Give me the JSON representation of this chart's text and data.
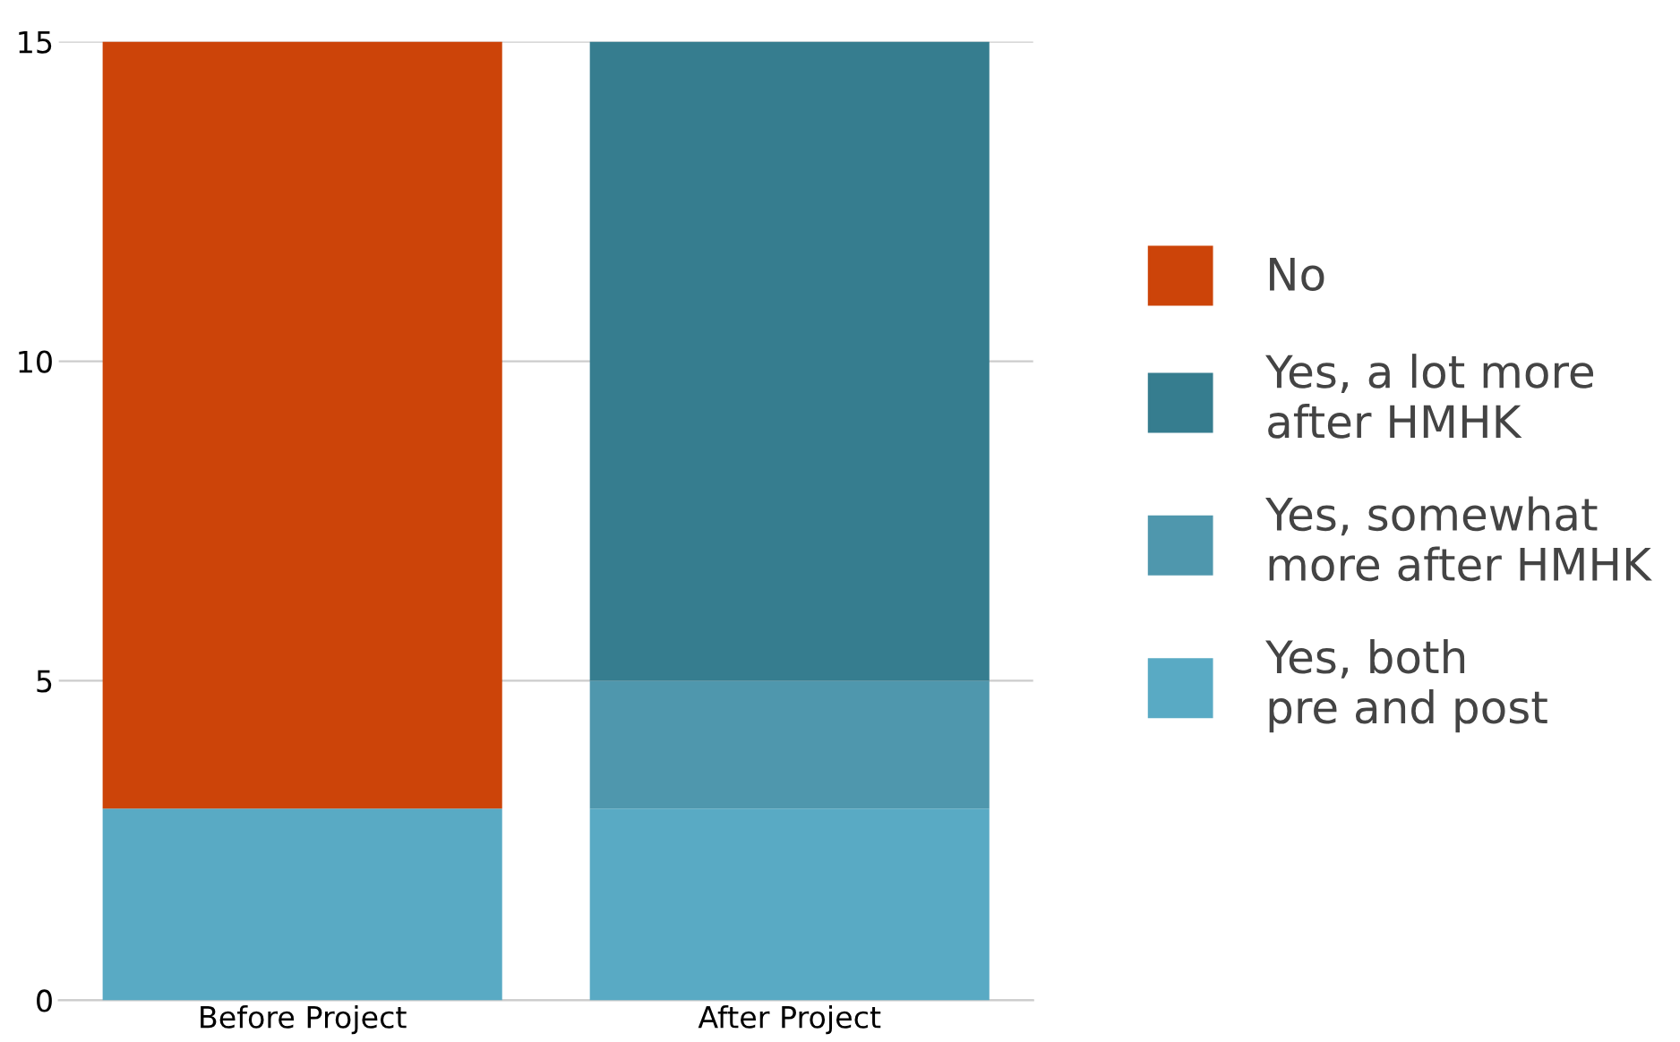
{
  "chart_data": {
    "type": "bar",
    "stacked": true,
    "categories": [
      "Before Project",
      "After Project"
    ],
    "series": [
      {
        "name": "Yes, both\npre and post",
        "color": "#59aac4",
        "values": [
          3,
          3
        ]
      },
      {
        "name": "Yes, somewhat\nmore after HMHK",
        "color": "#4f97ad",
        "values": [
          0,
          2
        ]
      },
      {
        "name": "Yes, a lot more\nafter HMHK",
        "color": "#367d8f",
        "values": [
          0,
          10
        ]
      },
      {
        "name": "No",
        "color": "#cc4409",
        "values": [
          12,
          0
        ]
      }
    ],
    "ylim": [
      0,
      15
    ],
    "yticks": [
      0,
      5,
      10,
      15
    ],
    "grid": "y",
    "legend": "right"
  }
}
